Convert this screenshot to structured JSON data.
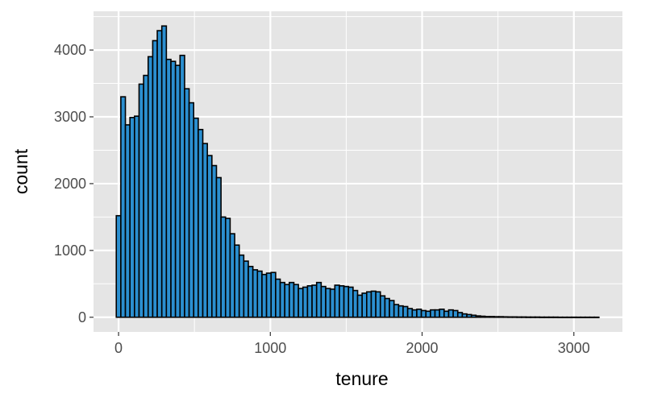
{
  "chart_data": {
    "type": "bar",
    "subtype": "histogram",
    "xlabel": "tenure",
    "ylabel": "count",
    "xlim": [
      -165,
      3320
    ],
    "ylim": [
      -220,
      4580
    ],
    "x_ticks": [
      0,
      1000,
      2000,
      3000
    ],
    "x_tick_labels": [
      "0",
      "1000",
      "2000",
      "3000"
    ],
    "y_ticks": [
      0,
      1000,
      2000,
      3000,
      4000
    ],
    "y_tick_labels": [
      "0",
      "1000",
      "2000",
      "3000",
      "4000"
    ],
    "grid": true,
    "legend": "none",
    "bin_width": 30,
    "bin_start": -15,
    "bar_fill": "#2b8fd0",
    "bar_stroke": "#000000",
    "panel_background": "#e5e5e5",
    "grid_color": "#ffffff",
    "counts": [
      1520,
      3300,
      2880,
      2990,
      3010,
      3490,
      3620,
      3900,
      4140,
      4290,
      4360,
      3860,
      3830,
      3770,
      3920,
      3420,
      3210,
      2980,
      2810,
      2600,
      2420,
      2270,
      2090,
      1500,
      1480,
      1250,
      1080,
      930,
      840,
      760,
      710,
      690,
      640,
      660,
      670,
      570,
      520,
      490,
      520,
      490,
      430,
      450,
      470,
      480,
      520,
      460,
      430,
      420,
      480,
      470,
      460,
      450,
      400,
      330,
      360,
      380,
      390,
      380,
      320,
      280,
      250,
      190,
      170,
      160,
      130,
      110,
      120,
      100,
      90,
      110,
      110,
      120,
      90,
      110,
      100,
      70,
      50,
      40,
      30,
      20,
      15,
      10,
      10,
      8,
      8,
      6,
      5,
      5,
      4,
      4,
      3,
      3,
      3,
      2,
      2,
      2,
      2,
      1,
      1,
      1,
      1,
      1,
      1,
      1,
      1,
      1
    ]
  }
}
